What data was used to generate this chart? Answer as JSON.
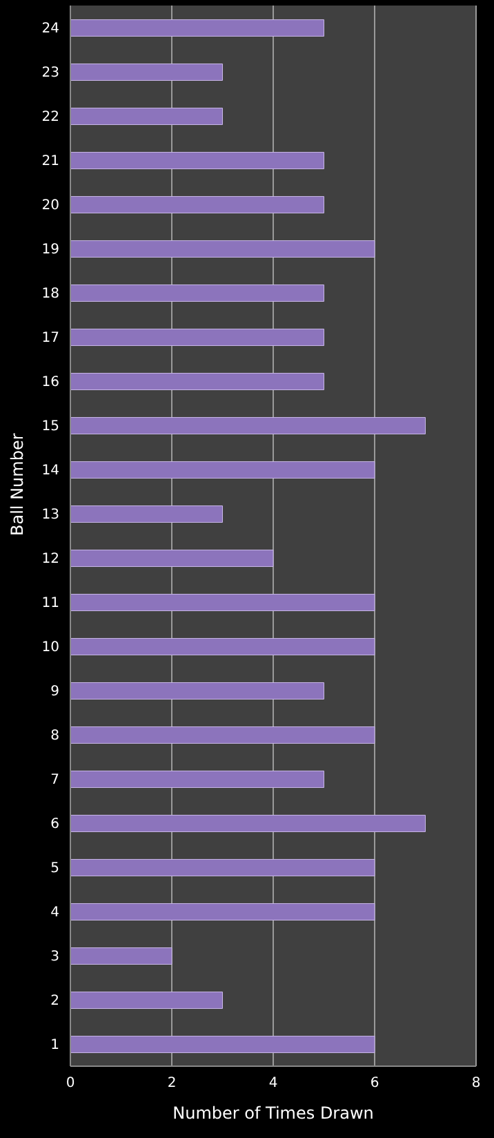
{
  "chart_data": {
    "type": "bar",
    "orientation": "horizontal",
    "xlabel": "Number  of Times Drawn",
    "ylabel": "Ball Number",
    "categories": [
      "24",
      "23",
      "22",
      "21",
      "20",
      "19",
      "18",
      "17",
      "16",
      "15",
      "14",
      "13",
      "12",
      "11",
      "10",
      "9",
      "8",
      "7",
      "6",
      "5",
      "4",
      "3",
      "2",
      "1"
    ],
    "values": [
      5,
      3,
      3,
      5,
      5,
      6,
      5,
      5,
      5,
      7,
      6,
      3,
      4,
      6,
      6,
      5,
      6,
      5,
      7,
      6,
      6,
      2,
      3,
      6
    ],
    "color": "#8c74bc",
    "xlim": [
      0,
      8
    ],
    "xticks": [
      0,
      2,
      4,
      6,
      8
    ],
    "grid": "x"
  }
}
